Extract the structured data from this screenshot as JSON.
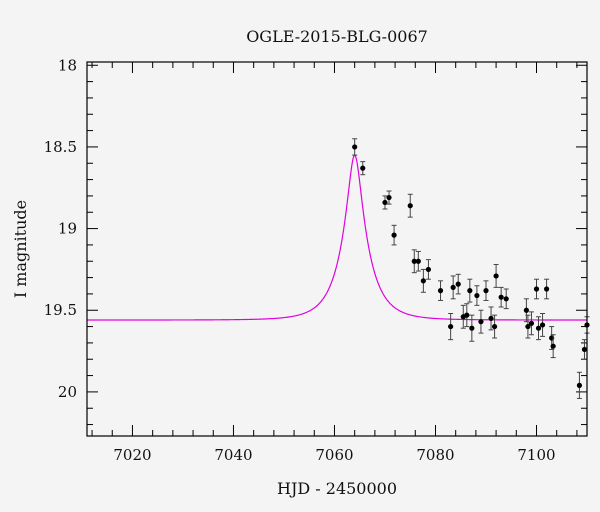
{
  "chart_data": {
    "type": "scatter",
    "title": "OGLE-2015-BLG-0067",
    "xlabel": "HJD - 2450000",
    "ylabel": "I magnitude",
    "xlim": [
      7011,
      7110
    ],
    "ylim": [
      20.27,
      17.98
    ],
    "y_inverted": true,
    "x_ticks": [
      7020,
      7040,
      7060,
      7080,
      7100
    ],
    "y_ticks": [
      18,
      18.5,
      19,
      19.5,
      20
    ],
    "x_tick_labels": [
      "7020",
      "7040",
      "7060",
      "7080",
      "7100"
    ],
    "y_tick_labels": [
      "18",
      "18.5",
      "19",
      "19.5",
      "20"
    ],
    "x_minor_step": 4,
    "y_minor_step": 0.1,
    "grid": false,
    "legend": "none",
    "colors": {
      "model": "#e000e0",
      "points": "#000000",
      "frame": "#000000"
    },
    "model": {
      "baseline": 19.56,
      "peak_mag": 18.55,
      "t0": 7064.0,
      "tE": 5.0,
      "u0": 0.25
    },
    "points": [
      {
        "x": 7064.0,
        "y": 18.5,
        "err": 0.05
      },
      {
        "x": 7065.6,
        "y": 18.63,
        "err": 0.04
      },
      {
        "x": 7070.0,
        "y": 18.84,
        "err": 0.04
      },
      {
        "x": 7070.8,
        "y": 18.81,
        "err": 0.04
      },
      {
        "x": 7071.8,
        "y": 19.04,
        "err": 0.06
      },
      {
        "x": 7075.0,
        "y": 18.86,
        "err": 0.07
      },
      {
        "x": 7075.8,
        "y": 19.2,
        "err": 0.07
      },
      {
        "x": 7076.6,
        "y": 19.2,
        "err": 0.06
      },
      {
        "x": 7077.6,
        "y": 19.32,
        "err": 0.07
      },
      {
        "x": 7078.6,
        "y": 19.25,
        "err": 0.06
      },
      {
        "x": 7081.0,
        "y": 19.38,
        "err": 0.06
      },
      {
        "x": 7083.0,
        "y": 19.6,
        "err": 0.08
      },
      {
        "x": 7083.5,
        "y": 19.36,
        "err": 0.07
      },
      {
        "x": 7084.5,
        "y": 19.34,
        "err": 0.06
      },
      {
        "x": 7085.5,
        "y": 19.54,
        "err": 0.07
      },
      {
        "x": 7086.2,
        "y": 19.53,
        "err": 0.07
      },
      {
        "x": 7086.8,
        "y": 19.38,
        "err": 0.07
      },
      {
        "x": 7087.2,
        "y": 19.61,
        "err": 0.08
      },
      {
        "x": 7088.2,
        "y": 19.41,
        "err": 0.06
      },
      {
        "x": 7089.0,
        "y": 19.57,
        "err": 0.07
      },
      {
        "x": 7090.0,
        "y": 19.38,
        "err": 0.06
      },
      {
        "x": 7091.0,
        "y": 19.55,
        "err": 0.07
      },
      {
        "x": 7091.7,
        "y": 19.6,
        "err": 0.07
      },
      {
        "x": 7092.0,
        "y": 19.29,
        "err": 0.07
      },
      {
        "x": 7093.0,
        "y": 19.42,
        "err": 0.06
      },
      {
        "x": 7094.0,
        "y": 19.43,
        "err": 0.06
      },
      {
        "x": 7098.0,
        "y": 19.5,
        "err": 0.07
      },
      {
        "x": 7098.3,
        "y": 19.6,
        "err": 0.07
      },
      {
        "x": 7099.0,
        "y": 19.58,
        "err": 0.07
      },
      {
        "x": 7100.0,
        "y": 19.37,
        "err": 0.06
      },
      {
        "x": 7100.4,
        "y": 19.61,
        "err": 0.07
      },
      {
        "x": 7101.2,
        "y": 19.59,
        "err": 0.07
      },
      {
        "x": 7102.0,
        "y": 19.37,
        "err": 0.06
      },
      {
        "x": 7103.0,
        "y": 19.67,
        "err": 0.07
      },
      {
        "x": 7103.3,
        "y": 19.72,
        "err": 0.07
      },
      {
        "x": 7108.5,
        "y": 19.96,
        "err": 0.08
      },
      {
        "x": 7109.5,
        "y": 19.74,
        "err": 0.06
      },
      {
        "x": 7110.0,
        "y": 19.59,
        "err": 0.05
      }
    ]
  }
}
